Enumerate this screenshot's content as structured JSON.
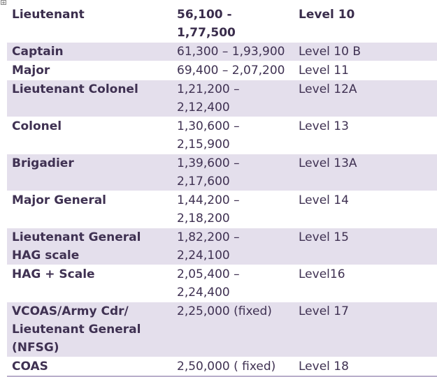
{
  "table": {
    "rows": [
      {
        "rank": "Lieutenant",
        "pay": "56,100 - 1,77,500",
        "level": "Level 10",
        "style": "header"
      },
      {
        "rank": "Captain",
        "pay": "61,300 – 1,93,900",
        "level": "Level 10 B",
        "style": "shaded"
      },
      {
        "rank": "Major",
        "pay": "69,400 – 2,07,200",
        "level": "Level 11",
        "style": "plain"
      },
      {
        "rank": "Lieutenant Colonel",
        "pay": "1,21,200 – 2,12,400",
        "level": "Level 12A",
        "style": "shaded"
      },
      {
        "rank": "Colonel",
        "pay": "1,30,600 – 2,15,900",
        "level": "Level 13",
        "style": "plain"
      },
      {
        "rank": "Brigadier",
        "pay": "1,39,600 – 2,17,600",
        "level": "Level 13A",
        "style": "shaded"
      },
      {
        "rank": "Major General",
        "pay": "1,44,200 – 2,18,200",
        "level": "Level 14",
        "style": "plain"
      },
      {
        "rank": "Lieutenant General HAG scale",
        "pay": "1,82,200 – 2,24,100",
        "level": "Level 15",
        "style": "shaded"
      },
      {
        "rank": "HAG + Scale",
        "pay": "2,05,400 – 2,24,400",
        "level": "Level16",
        "style": "plain"
      },
      {
        "rank": "VCOAS/Army Cdr/ Lieutenant General (NFSG)",
        "pay": "2,25,000 (fixed)",
        "level": "Level 17",
        "style": "shaded"
      },
      {
        "rank": "COAS",
        "pay": "2,50,000 ( fixed)",
        "level": "Level 18",
        "style": "plain"
      }
    ]
  }
}
